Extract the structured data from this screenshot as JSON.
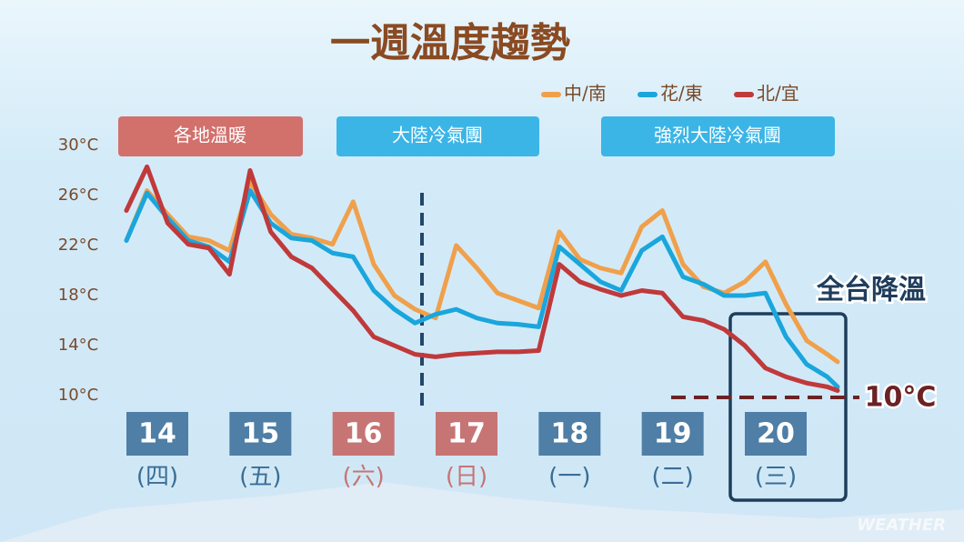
{
  "chart_data": {
    "type": "line",
    "title": "一週溫度趨勢",
    "legend": "top-right",
    "phases": [
      "各地溫暖",
      "大陸冷氣團",
      "強烈大陸冷氣團"
    ],
    "annotation": "全台降溫",
    "reference_line": {
      "value": 10,
      "label": "10°C"
    },
    "watermark": "WEATHER",
    "xlim": [
      13.7,
      20.6
    ],
    "xticks": [
      {
        "value": 14,
        "label": "14"
      },
      {
        "value": 15,
        "label": "15"
      },
      {
        "value": 16,
        "label": "16"
      },
      {
        "value": 17,
        "label": "17"
      },
      {
        "value": 18,
        "label": "18"
      },
      {
        "value": 19,
        "label": "19"
      },
      {
        "value": 20,
        "label": "20"
      }
    ],
    "xtick_sublabels": [
      "(四)",
      "(五)",
      "(六)",
      "(日)",
      "(一)",
      "(二)",
      "(三)"
    ],
    "xtick_colors": [
      "#4f7ea6",
      "#4f7ea6",
      "#c77474",
      "#c77474",
      "#4f7ea6",
      "#4f7ea6",
      "#4f7ea6"
    ],
    "ylim": [
      10,
      30
    ],
    "yticks": [
      {
        "value": 10,
        "label": "10°C"
      },
      {
        "value": 14,
        "label": "14°C"
      },
      {
        "value": 18,
        "label": "18°C"
      },
      {
        "value": 22,
        "label": "22°C"
      },
      {
        "value": 26,
        "label": "26°C"
      },
      {
        "value": 30,
        "label": "30°C"
      }
    ],
    "x": [
      13.7,
      13.9,
      14.1,
      14.3,
      14.5,
      14.7,
      14.9,
      15.1,
      15.3,
      15.5,
      15.7,
      15.9,
      16.1,
      16.3,
      16.5,
      16.7,
      16.9,
      17.1,
      17.3,
      17.5,
      17.7,
      17.9,
      18.1,
      18.3,
      18.5,
      18.7,
      18.9,
      19.1,
      19.3,
      19.5,
      19.7,
      19.9,
      20.1,
      20.3,
      20.5,
      20.6
    ],
    "series": [
      {
        "name": "中/南",
        "color": "#f0a04b",
        "values": [
          22.4,
          26.4,
          24.5,
          22.7,
          22.4,
          21.6,
          27.1,
          24.5,
          22.9,
          22.6,
          22.1,
          25.5,
          20.5,
          18.0,
          16.9,
          16.2,
          22.0,
          20.2,
          18.2,
          17.6,
          17.0,
          23.1,
          20.9,
          20.2,
          19.8,
          23.5,
          24.8,
          20.5,
          18.7,
          18.2,
          19.1,
          20.7,
          17.3,
          14.4,
          13.3,
          12.7
        ]
      },
      {
        "name": "花/東",
        "color": "#1aa6dc",
        "values": [
          22.4,
          26.2,
          24.2,
          22.4,
          21.9,
          20.7,
          26.4,
          23.8,
          22.6,
          22.4,
          21.4,
          21.1,
          18.4,
          16.9,
          15.8,
          16.5,
          16.9,
          16.2,
          15.8,
          15.7,
          15.5,
          21.9,
          20.5,
          19.1,
          18.4,
          21.6,
          22.7,
          19.5,
          18.9,
          18.0,
          18.0,
          18.2,
          14.7,
          12.5,
          11.5,
          10.7
        ]
      },
      {
        "name": "北/宜",
        "color": "#c0393b",
        "values": [
          24.8,
          28.3,
          23.8,
          22.1,
          21.8,
          19.7,
          28.0,
          23.1,
          21.1,
          20.2,
          18.5,
          16.8,
          14.7,
          14.0,
          13.3,
          13.1,
          13.3,
          13.4,
          13.5,
          13.5,
          13.6,
          20.5,
          19.1,
          18.5,
          18.0,
          18.4,
          18.2,
          16.3,
          16.0,
          15.3,
          14.0,
          12.2,
          11.5,
          11.0,
          10.7,
          10.4
        ]
      }
    ]
  }
}
